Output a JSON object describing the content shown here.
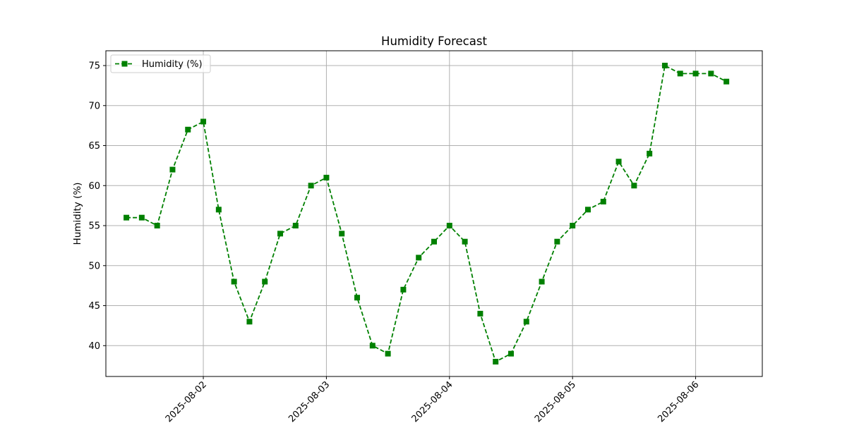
{
  "chart_data": {
    "type": "line",
    "title": "Humidity Forecast",
    "xlabel": "",
    "ylabel": "Humidity (%)",
    "x_ticks": [
      "2025-08-02",
      "2025-08-03",
      "2025-08-04",
      "2025-08-05",
      "2025-08-06"
    ],
    "y_ticks": [
      40,
      45,
      50,
      55,
      60,
      65,
      70,
      75
    ],
    "ylim": [
      36.15,
      76.85
    ],
    "xlim": [
      "2025-08-01 05:00",
      "2025-08-06 13:00"
    ],
    "grid": true,
    "legend_position": "upper-left",
    "colors": {
      "series": "#008000",
      "grid": "#b0b0b0",
      "axes": "#000000"
    },
    "series": [
      {
        "name": "Humidity (%)",
        "style": "dashed",
        "marker": "square",
        "x": [
          "2025-08-01 09:00",
          "2025-08-01 12:00",
          "2025-08-01 15:00",
          "2025-08-01 18:00",
          "2025-08-01 21:00",
          "2025-08-02 00:00",
          "2025-08-02 03:00",
          "2025-08-02 06:00",
          "2025-08-02 09:00",
          "2025-08-02 12:00",
          "2025-08-02 15:00",
          "2025-08-02 18:00",
          "2025-08-02 21:00",
          "2025-08-03 00:00",
          "2025-08-03 03:00",
          "2025-08-03 06:00",
          "2025-08-03 09:00",
          "2025-08-03 12:00",
          "2025-08-03 15:00",
          "2025-08-03 18:00",
          "2025-08-03 21:00",
          "2025-08-04 00:00",
          "2025-08-04 03:00",
          "2025-08-04 06:00",
          "2025-08-04 09:00",
          "2025-08-04 12:00",
          "2025-08-04 15:00",
          "2025-08-04 18:00",
          "2025-08-04 21:00",
          "2025-08-05 00:00",
          "2025-08-05 03:00",
          "2025-08-05 06:00",
          "2025-08-05 09:00",
          "2025-08-05 12:00",
          "2025-08-05 15:00",
          "2025-08-05 18:00",
          "2025-08-05 21:00",
          "2025-08-06 00:00",
          "2025-08-06 03:00",
          "2025-08-06 06:00"
        ],
        "values": [
          56,
          56,
          55,
          62,
          67,
          68,
          57,
          48,
          43,
          48,
          54,
          55,
          60,
          61,
          54,
          46,
          40,
          39,
          47,
          51,
          53,
          55,
          53,
          44,
          38,
          39,
          43,
          48,
          53,
          55,
          57,
          58,
          63,
          60,
          64,
          75,
          74,
          74,
          74,
          73
        ]
      }
    ]
  }
}
